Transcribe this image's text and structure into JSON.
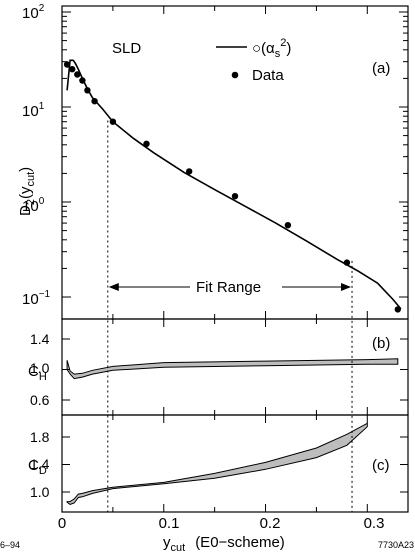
{
  "chart_data": [
    {
      "panel": "(a)",
      "type": "line",
      "ylabel_main": "D",
      "ylabel_sub": "2",
      "ylabel_arg": "(y",
      "ylabel_arg_sub": "cut",
      "ylabel_close": ")",
      "yscale": "log",
      "ylim": [
        0.07,
        100
      ],
      "xlim": [
        0,
        0.34
      ],
      "yticks": [
        {
          "value": 100,
          "base": "10",
          "exp": "2"
        },
        {
          "value": 10,
          "base": "10",
          "exp": "1"
        },
        {
          "value": 1,
          "base": "10",
          "exp": "0"
        },
        {
          "value": 0.1,
          "base": "10",
          "exp": "−1"
        }
      ],
      "label_sld": "SLD",
      "legend": [
        {
          "kind": "line",
          "text": "○(α",
          "sub": "s",
          "sup": "2",
          "close": ")"
        },
        {
          "kind": "point",
          "text": "Data"
        }
      ],
      "annotation": "Fit Range",
      "fit_range": [
        0.045,
        0.285
      ],
      "series": [
        {
          "name": "○(αs²)",
          "kind": "line",
          "x": [
            0.005,
            0.008,
            0.011,
            0.013,
            0.016,
            0.02,
            0.025,
            0.03,
            0.04,
            0.05,
            0.07,
            0.09,
            0.12,
            0.15,
            0.18,
            0.21,
            0.24,
            0.27,
            0.29,
            0.31,
            0.325,
            0.333
          ],
          "y": [
            15,
            31,
            31,
            29,
            25,
            20,
            15.5,
            12.5,
            9.5,
            7,
            4.7,
            3.3,
            2.05,
            1.35,
            0.9,
            0.6,
            0.39,
            0.25,
            0.19,
            0.14,
            0.095,
            0.075
          ]
        },
        {
          "name": "Data",
          "kind": "points",
          "x": [
            0.005,
            0.01,
            0.015,
            0.02,
            0.025,
            0.032,
            0.05,
            0.083,
            0.125,
            0.17,
            0.222,
            0.28,
            0.33
          ],
          "y": [
            28,
            25,
            22,
            19,
            15,
            11.5,
            7,
            4.1,
            2.1,
            1.15,
            0.57,
            0.23,
            0.074
          ]
        }
      ]
    },
    {
      "panel": "(b)",
      "type": "area",
      "ylabel_main": "C",
      "ylabel_sub": "H",
      "ylim": [
        0.45,
        1.6
      ],
      "yticks": [
        "1.4",
        "1.0",
        "0.6"
      ],
      "ytick_values": [
        1.4,
        1.0,
        0.6
      ],
      "x": [
        0.005,
        0.008,
        0.012,
        0.02,
        0.03,
        0.05,
        0.1,
        0.2,
        0.3,
        0.33
      ],
      "lower": [
        1.0,
        0.94,
        0.88,
        0.9,
        0.94,
        0.99,
        1.03,
        1.05,
        1.07,
        1.07
      ],
      "upper": [
        1.12,
        0.98,
        0.94,
        0.95,
        0.99,
        1.04,
        1.09,
        1.11,
        1.13,
        1.14
      ]
    },
    {
      "panel": "(c)",
      "type": "area",
      "ylabel_main": "C",
      "ylabel_sub": "D",
      "ylim": [
        0.6,
        2.0
      ],
      "yticks": [
        "1.8",
        "1.4",
        "1.0"
      ],
      "ytick_values": [
        1.8,
        1.4,
        1.0
      ],
      "xlabel_main": "y",
      "xlabel_sub": "cut",
      "xlabel_rest": "(E0−scheme)",
      "xticks": [
        "0",
        "0.1",
        "0.2",
        "0.3"
      ],
      "xtick_values": [
        0,
        0.1,
        0.2,
        0.3
      ],
      "x": [
        0.005,
        0.008,
        0.012,
        0.016,
        0.02,
        0.03,
        0.05,
        0.1,
        0.15,
        0.2,
        0.25,
        0.28,
        0.3
      ],
      "lower": [
        0.85,
        0.82,
        0.84,
        0.92,
        0.93,
        0.98,
        1.05,
        1.12,
        1.2,
        1.33,
        1.5,
        1.68,
        1.95
      ],
      "upper": [
        0.86,
        0.86,
        0.9,
        0.97,
        0.98,
        1.02,
        1.07,
        1.14,
        1.27,
        1.43,
        1.64,
        1.84,
        2.0
      ]
    }
  ],
  "footer": {
    "left": "6–94",
    "right": "7730A23"
  }
}
